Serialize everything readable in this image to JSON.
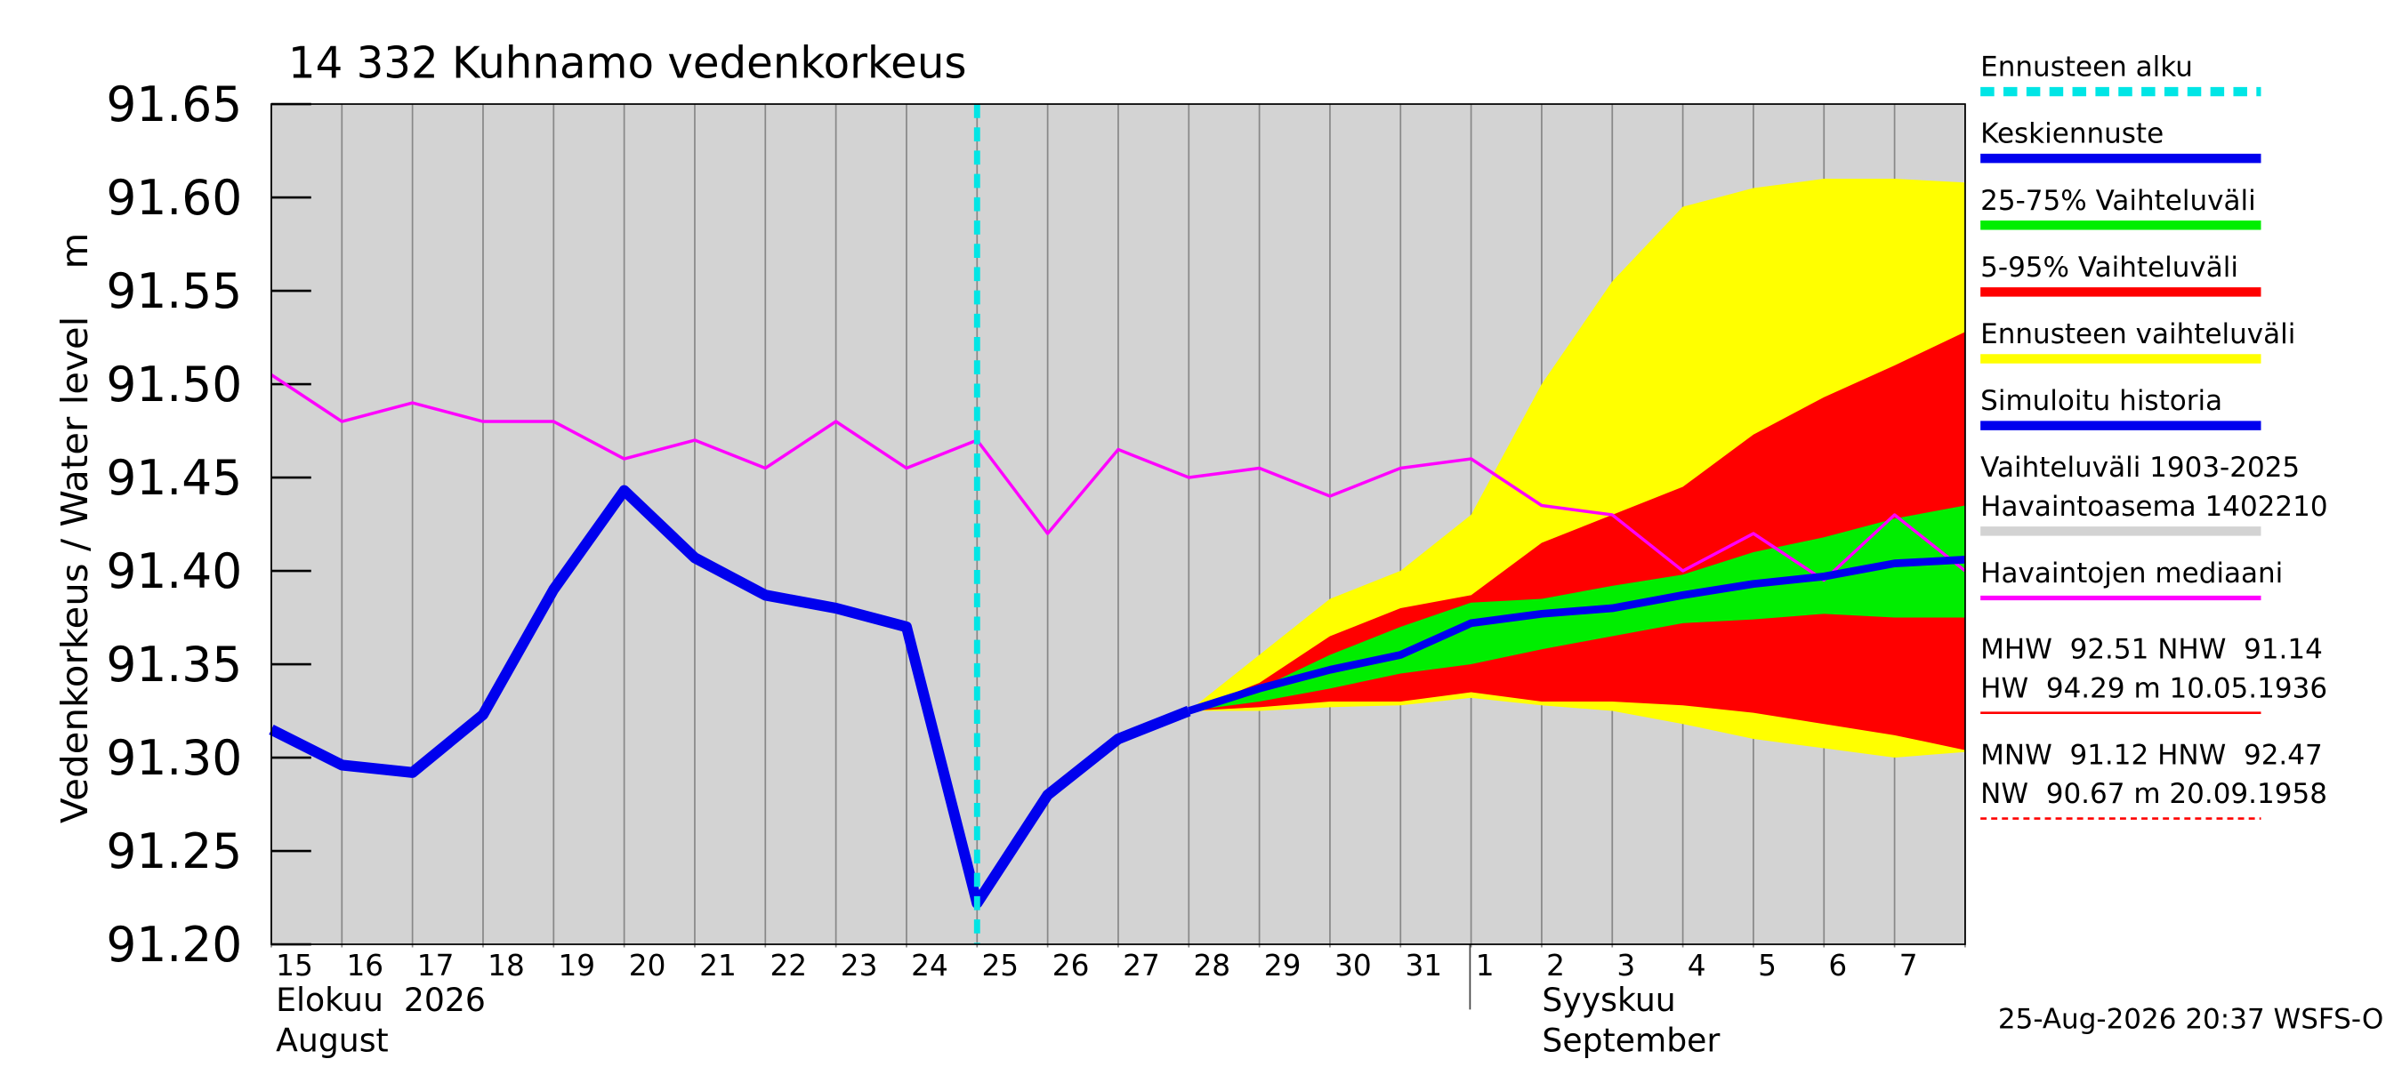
{
  "chart_data": {
    "type": "hydrograph",
    "title": "14 332 Kuhnamo vedenkorkeus",
    "y_label": "Vedenkorkeus / Water level    m",
    "xlim": [
      0,
      24
    ],
    "ylim": [
      91.2,
      91.65
    ],
    "yticks": [
      {
        "value": 91.2,
        "label": "91.20"
      },
      91.25,
      {
        "value": 91.3,
        "label": "91.30"
      },
      91.35,
      {
        "value": 91.4,
        "label": "91.40"
      },
      91.45,
      {
        "value": 91.5,
        "label": "91.50"
      },
      91.55,
      {
        "value": 91.6,
        "label": "91.60"
      },
      91.65
    ],
    "day_labels": [
      "15",
      "16",
      "17",
      "18",
      "19",
      "20",
      "21",
      "22",
      "23",
      "24",
      "25",
      "26",
      "27",
      "28",
      "29",
      "30",
      "31",
      "1",
      "2",
      "3",
      "4",
      "5",
      "6",
      "7"
    ],
    "months": [
      [
        "Elokuu  2026",
        "August"
      ],
      [
        "Syyskuu",
        "September"
      ]
    ],
    "timestamp": "25-Aug-2026 20:37 WSFS-O",
    "background": "#d3d3d3",
    "series": [
      {
        "name": "Ennusteen alku",
        "kind": "vline",
        "color": "#00e5e5",
        "x": 10
      },
      {
        "name": "Keskiennuste",
        "kind": "line",
        "color": "#0000ee",
        "x": [
          13,
          14,
          15,
          16,
          17,
          18,
          19,
          20,
          21,
          22,
          23,
          24
        ],
        "values": [
          91.325,
          91.337,
          91.347,
          91.355,
          91.372,
          91.377,
          91.38,
          91.387,
          91.393,
          91.397,
          91.404,
          91.406
        ]
      },
      {
        "name": "25-75% Vaihteluväli",
        "kind": "band",
        "color": "#00ee00",
        "x": [
          13,
          14,
          15,
          16,
          17,
          18,
          19,
          20,
          21,
          22,
          23,
          24
        ],
        "upper": [
          91.325,
          91.337,
          91.355,
          91.37,
          91.383,
          91.385,
          91.392,
          91.398,
          91.41,
          91.418,
          91.428,
          91.435
        ],
        "lower": [
          91.325,
          91.33,
          91.337,
          91.345,
          91.35,
          91.358,
          91.365,
          91.372,
          91.374,
          91.377,
          91.375,
          91.375
        ]
      },
      {
        "name": "5-95% Vaihteluväli",
        "kind": "band",
        "color": "#ff0000",
        "x": [
          13,
          14,
          15,
          16,
          17,
          18,
          19,
          20,
          21,
          22,
          23,
          24
        ],
        "upper": [
          91.325,
          91.34,
          91.365,
          91.38,
          91.387,
          91.415,
          91.43,
          91.445,
          91.473,
          91.493,
          91.51,
          91.528
        ],
        "lower": [
          91.325,
          91.327,
          91.33,
          91.33,
          91.335,
          91.33,
          91.33,
          91.328,
          91.324,
          91.318,
          91.312,
          91.304
        ]
      },
      {
        "name": "Ennusteen vaihteluväli",
        "kind": "band",
        "color": "#ffff00",
        "x": [
          13,
          14,
          15,
          16,
          17,
          18,
          19,
          20,
          21,
          22,
          23,
          24
        ],
        "upper": [
          91.325,
          91.355,
          91.385,
          91.4,
          91.43,
          91.5,
          91.555,
          91.595,
          91.605,
          91.61,
          91.61,
          91.608
        ],
        "lower": [
          91.325,
          91.325,
          91.327,
          91.328,
          91.332,
          91.328,
          91.325,
          91.318,
          91.31,
          91.305,
          91.3,
          91.303
        ]
      },
      {
        "name": "Simuloitu historia",
        "kind": "thickline",
        "color": "#0000ee",
        "x": [
          0,
          1,
          2,
          3,
          4,
          5,
          6,
          7,
          8,
          9,
          10,
          11,
          12,
          13
        ],
        "values": [
          91.315,
          91.296,
          91.292,
          91.323,
          91.39,
          91.443,
          91.407,
          91.387,
          91.38,
          91.37,
          91.222,
          91.28,
          91.31,
          91.325
        ]
      },
      {
        "name": "Vaihteluväli 1903-2025\nHavaintoasema 1402210",
        "kind": "range",
        "color": "#d3d3d3"
      },
      {
        "name": "Havaintojen mediaani",
        "kind": "median",
        "color": "#ff00ff",
        "x": [
          0,
          1,
          2,
          3,
          4,
          5,
          6,
          7,
          8,
          9,
          10,
          11,
          12,
          13,
          14,
          15,
          16,
          17,
          18,
          19,
          20,
          21,
          22,
          23,
          24
        ],
        "values": [
          91.505,
          91.48,
          91.49,
          91.48,
          91.48,
          91.46,
          91.47,
          91.455,
          91.48,
          91.455,
          91.47,
          91.42,
          91.465,
          91.45,
          91.455,
          91.44,
          91.455,
          91.46,
          91.435,
          91.43,
          91.4,
          91.42,
          91.395,
          91.43,
          91.4
        ]
      }
    ],
    "stats": [
      {
        "lines": [
          "MHW  92.51 NHW  91.14",
          "HW  94.29 m 10.05.1936"
        ],
        "color": "#ff0000",
        "dash": false
      },
      {
        "lines": [
          "MNW  91.12 HNW  92.47",
          "NW  90.67 m 20.09.1958"
        ],
        "color": "#ff0000",
        "dash": true
      }
    ]
  }
}
